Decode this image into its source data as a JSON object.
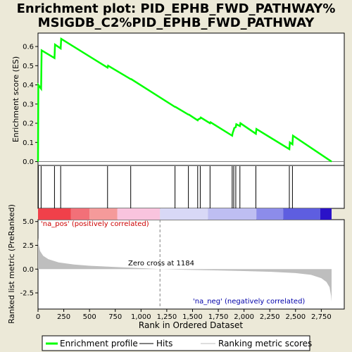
{
  "title_line1": "Enrichment plot: PID_EPHB_FWD_PATHWAY%",
  "title_line2": "MSIGDB_C2%PID_EPHB_FWD_PATHWAY",
  "colors": {
    "es_line": "#00FF00",
    "hit_line": "#000000",
    "metric_fill": "#BEBEBE",
    "background": "#ECE9D8"
  },
  "chart_data": [
    {
      "type": "line",
      "name": "enrichment-profile",
      "ylabel": "Enrichment score (ES)",
      "yticks": [
        0.0,
        0.1,
        0.2,
        0.3,
        0.4,
        0.5,
        0.6
      ],
      "ytick_labels": [
        "0.0",
        "0.1",
        "0.2",
        "0.3",
        "0.4",
        "0.5",
        "0.6"
      ],
      "ylim": [
        -0.02,
        0.67
      ],
      "xlim": [
        0,
        2850
      ],
      "points": [
        [
          0,
          0
        ],
        [
          3,
          0.4
        ],
        [
          30,
          0.38
        ],
        [
          35,
          0.58
        ],
        [
          160,
          0.54
        ],
        [
          165,
          0.61
        ],
        [
          220,
          0.59
        ],
        [
          225,
          0.64
        ],
        [
          675,
          0.49
        ],
        [
          680,
          0.5
        ],
        [
          900,
          0.43
        ],
        [
          905,
          0.43
        ],
        [
          1330,
          0.285
        ],
        [
          1335,
          0.285
        ],
        [
          1460,
          0.245
        ],
        [
          1465,
          0.245
        ],
        [
          1550,
          0.215
        ],
        [
          1555,
          0.22
        ],
        [
          1575,
          0.225
        ],
        [
          1580,
          0.23
        ],
        [
          1670,
          0.2
        ],
        [
          1675,
          0.205
        ],
        [
          1885,
          0.135
        ],
        [
          1890,
          0.15
        ],
        [
          1900,
          0.165
        ],
        [
          1905,
          0.175
        ],
        [
          1920,
          0.18
        ],
        [
          1925,
          0.195
        ],
        [
          1960,
          0.185
        ],
        [
          1965,
          0.2
        ],
        [
          2115,
          0.145
        ],
        [
          2120,
          0.17
        ],
        [
          2440,
          0.065
        ],
        [
          2445,
          0.1
        ],
        [
          2470,
          0.09
        ],
        [
          2475,
          0.135
        ],
        [
          2850,
          0.0
        ]
      ],
      "hits": [
        3,
        30,
        160,
        220,
        675,
        900,
        1330,
        1460,
        1550,
        1575,
        1670,
        1885,
        1900,
        1920,
        1960,
        2115,
        2440,
        2470
      ]
    },
    {
      "type": "heatmap",
      "name": "rank-color-bar",
      "segments": [
        {
          "from": 0,
          "to": 320,
          "color": "#F0404A"
        },
        {
          "from": 320,
          "to": 500,
          "color": "#F27078"
        },
        {
          "from": 500,
          "to": 770,
          "color": "#F59A9A"
        },
        {
          "from": 770,
          "to": 1184,
          "color": "#F9C4DE"
        },
        {
          "from": 1184,
          "to": 1650,
          "color": "#D8D8F6"
        },
        {
          "from": 1650,
          "to": 2120,
          "color": "#BEBEF2"
        },
        {
          "from": 2120,
          "to": 2380,
          "color": "#8C8CEA"
        },
        {
          "from": 2380,
          "to": 2740,
          "color": "#5E5EE0"
        },
        {
          "from": 2740,
          "to": 2850,
          "color": "#2A12C8"
        }
      ]
    },
    {
      "type": "area",
      "name": "ranked-list-metric",
      "ylabel": "Ranked list metric (PreRanked)",
      "xlabel": "Rank in Ordered Dataset",
      "xticks": [
        0,
        250,
        500,
        750,
        1000,
        1250,
        1500,
        1750,
        2000,
        2250,
        2500,
        2750
      ],
      "xtick_labels": [
        "0",
        "250",
        "500",
        "750",
        "1,000",
        "1,250",
        "1,500",
        "1,750",
        "2,000",
        "2,250",
        "2,500",
        "2,750"
      ],
      "yticks": [
        5.0,
        2.5,
        0.0,
        -2.5
      ],
      "ytick_labels": [
        "5.0",
        "2.5",
        "0.0",
        "-2.5"
      ],
      "ylim": [
        -4.2,
        5.2
      ],
      "xlim": [
        0,
        2850
      ],
      "points": [
        [
          0,
          3.3
        ],
        [
          5,
          2.6
        ],
        [
          20,
          1.9
        ],
        [
          50,
          1.4
        ],
        [
          100,
          1.05
        ],
        [
          200,
          0.7
        ],
        [
          350,
          0.48
        ],
        [
          500,
          0.35
        ],
        [
          750,
          0.22
        ],
        [
          1000,
          0.1
        ],
        [
          1184,
          0.0
        ],
        [
          1400,
          -0.06
        ],
        [
          1750,
          -0.14
        ],
        [
          2000,
          -0.2
        ],
        [
          2250,
          -0.28
        ],
        [
          2500,
          -0.42
        ],
        [
          2650,
          -0.6
        ],
        [
          2750,
          -0.95
        ],
        [
          2800,
          -1.35
        ],
        [
          2830,
          -1.9
        ],
        [
          2845,
          -2.8
        ],
        [
          2850,
          -3.4
        ]
      ],
      "pos_label": "'na_pos' (positively correlated)",
      "neg_label": "'na_neg' (negatively correlated)",
      "zero_cross_label": "Zero cross at 1184",
      "zero_cross": 1184
    }
  ],
  "legend": [
    {
      "label": "Enrichment profile",
      "swatch": "es"
    },
    {
      "label": "Hits",
      "swatch": "hit"
    },
    {
      "label": "Ranking metric scores",
      "swatch": "metric"
    }
  ]
}
